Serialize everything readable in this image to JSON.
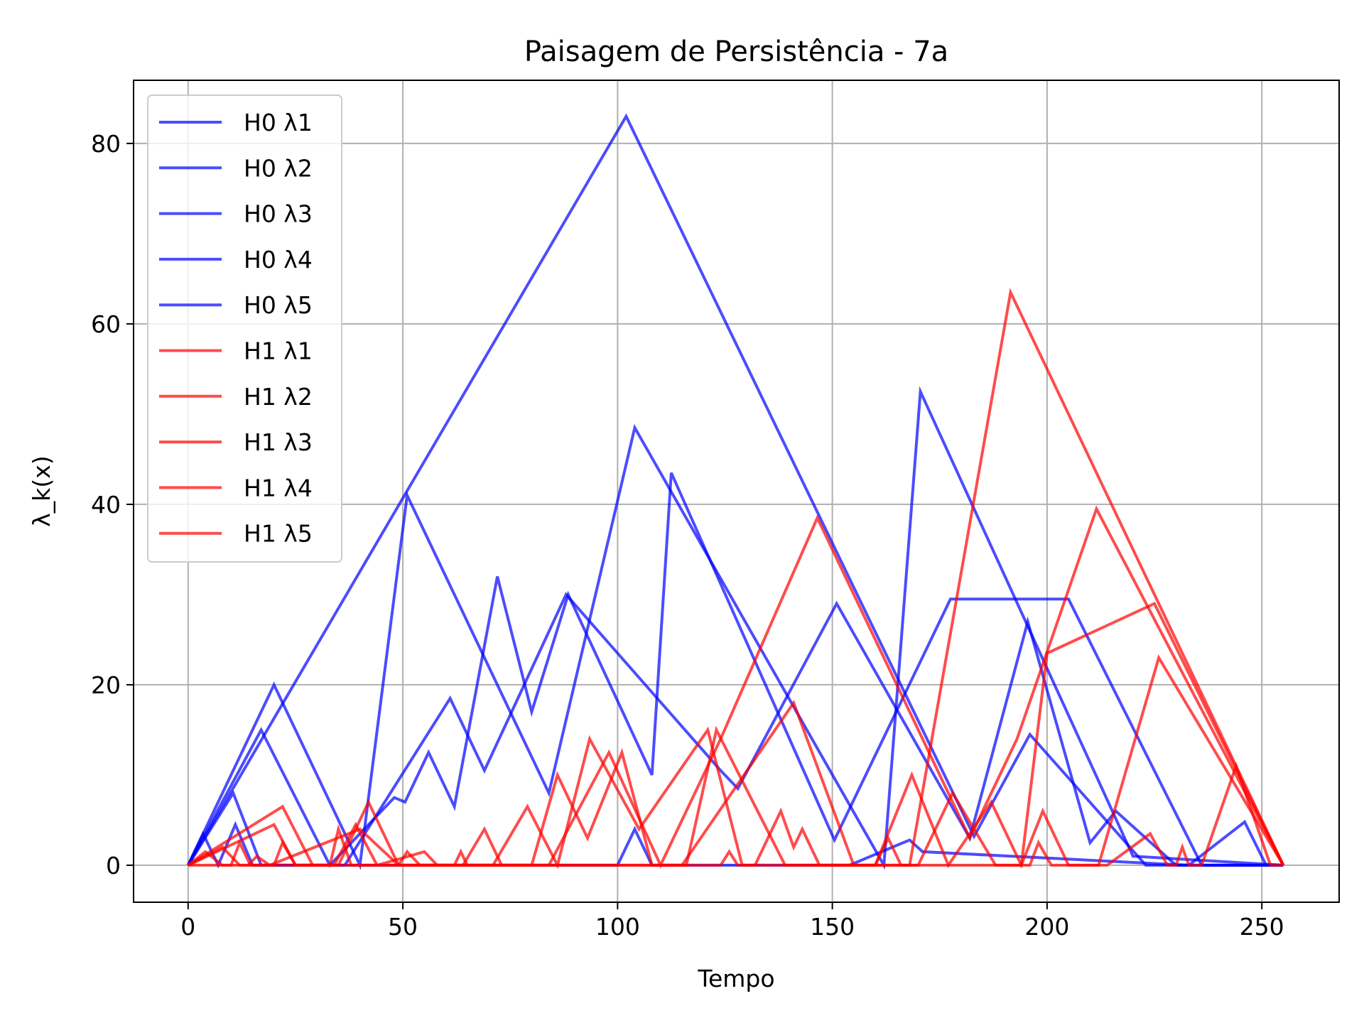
{
  "chart_data": {
    "type": "line",
    "title": "Paisagem de Persistência - 7a",
    "xlabel": "Tempo",
    "ylabel": "λ_k(x)",
    "xlim": [
      -12.7,
      268
    ],
    "ylim": [
      -4.1,
      87.0
    ],
    "xticks": [
      0,
      50,
      100,
      150,
      200,
      250
    ],
    "yticks": [
      0,
      20,
      40,
      60,
      80
    ],
    "grid": true,
    "legend_position": "upper-left",
    "colors": {
      "H0": "#0000ff",
      "H1": "#ff0000"
    },
    "line_alpha": 0.7,
    "series": [
      {
        "name": "H0 λ1",
        "group": "H0",
        "points": [
          [
            0,
            0
          ],
          [
            102,
            83
          ],
          [
            183,
            3.2
          ],
          [
            196,
            14.5
          ],
          [
            223,
            0
          ],
          [
            255,
            0
          ]
        ]
      },
      {
        "name": "H0 λ2",
        "group": "H0",
        "points": [
          [
            0,
            0
          ],
          [
            20,
            20
          ],
          [
            40,
            0
          ],
          [
            51,
            41
          ],
          [
            84,
            8
          ],
          [
            104,
            48.5
          ],
          [
            162,
            0
          ],
          [
            170.5,
            52.5
          ],
          [
            220,
            1
          ],
          [
            255,
            0
          ]
        ]
      },
      {
        "name": "H0 λ3",
        "group": "H0",
        "points": [
          [
            0,
            0
          ],
          [
            17,
            15
          ],
          [
            33,
            0
          ],
          [
            48,
            7.5
          ],
          [
            50.5,
            7
          ],
          [
            56,
            12.5
          ],
          [
            62,
            6.5
          ],
          [
            72,
            32
          ],
          [
            80,
            17
          ],
          [
            88.5,
            30
          ],
          [
            108,
            10
          ],
          [
            112.5,
            43.5
          ],
          [
            150.5,
            2.8
          ],
          [
            177.5,
            29.5
          ],
          [
            205,
            29.5
          ],
          [
            236,
            0
          ],
          [
            255,
            0
          ]
        ]
      },
      {
        "name": "H0 λ4",
        "group": "H0",
        "points": [
          [
            0,
            0
          ],
          [
            10.5,
            8
          ],
          [
            17,
            0
          ],
          [
            36.5,
            0
          ],
          [
            61,
            18.5
          ],
          [
            69,
            10.5
          ],
          [
            88,
            30
          ],
          [
            124,
            10.5
          ],
          [
            128,
            8.5
          ],
          [
            151,
            29
          ],
          [
            182,
            3
          ],
          [
            195.5,
            27
          ],
          [
            210,
            2.5
          ],
          [
            216,
            6
          ],
          [
            230,
            0
          ],
          [
            255,
            0
          ]
        ]
      },
      {
        "name": "H0 λ5",
        "group": "H0",
        "points": [
          [
            0,
            0
          ],
          [
            3.5,
            3.5
          ],
          [
            7,
            0
          ],
          [
            11,
            4.5
          ],
          [
            15,
            0
          ],
          [
            100,
            0
          ],
          [
            104,
            4
          ],
          [
            108,
            0
          ],
          [
            154,
            0
          ],
          [
            168,
            2.8
          ],
          [
            171,
            1.5
          ],
          [
            233,
            0
          ],
          [
            246,
            4.8
          ],
          [
            251,
            0
          ],
          [
            255,
            0
          ]
        ]
      },
      {
        "name": "H1 λ1",
        "group": "H1",
        "points": [
          [
            0,
            0
          ],
          [
            35,
            0
          ],
          [
            42,
            7
          ],
          [
            49,
            0
          ],
          [
            116,
            0
          ],
          [
            123,
            15
          ],
          [
            139,
            0
          ],
          [
            168,
            0
          ],
          [
            191.5,
            63.5
          ],
          [
            255,
            0
          ]
        ]
      },
      {
        "name": "H1 λ2",
        "group": "H1",
        "points": [
          [
            0,
            0
          ],
          [
            20,
            4.5
          ],
          [
            25,
            0
          ],
          [
            49,
            0
          ],
          [
            51,
            1.5
          ],
          [
            54,
            0
          ],
          [
            84,
            0
          ],
          [
            98,
            12.5
          ],
          [
            110,
            0
          ],
          [
            124,
            14
          ],
          [
            146.5,
            38.5
          ],
          [
            182,
            3
          ],
          [
            193,
            14
          ],
          [
            211.5,
            39.5
          ],
          [
            255,
            0
          ]
        ]
      },
      {
        "name": "H1 λ3",
        "group": "H1",
        "points": [
          [
            0,
            0
          ],
          [
            22,
            6.5
          ],
          [
            29,
            0
          ],
          [
            33,
            0
          ],
          [
            35,
            4
          ],
          [
            38,
            0
          ],
          [
            71,
            0
          ],
          [
            79,
            6.5
          ],
          [
            86,
            0
          ],
          [
            93.5,
            14
          ],
          [
            105,
            4
          ],
          [
            121,
            15
          ],
          [
            129,
            0
          ],
          [
            148,
            0
          ],
          [
            170,
            0
          ],
          [
            178,
            8
          ],
          [
            188,
            0
          ],
          [
            194,
            0
          ],
          [
            200,
            23.5
          ],
          [
            225,
            29
          ],
          [
            255,
            0
          ]
        ]
      },
      {
        "name": "H1 λ4",
        "group": "H1",
        "points": [
          [
            0,
            0
          ],
          [
            8,
            2
          ],
          [
            12,
            0
          ],
          [
            14,
            0
          ],
          [
            16,
            1
          ],
          [
            19,
            0
          ],
          [
            40,
            4
          ],
          [
            49,
            0
          ],
          [
            64,
            0
          ],
          [
            69,
            4
          ],
          [
            73,
            0
          ],
          [
            80,
            0
          ],
          [
            86,
            10
          ],
          [
            93,
            3
          ],
          [
            101,
            12.5
          ],
          [
            108,
            0
          ],
          [
            115,
            0
          ],
          [
            141,
            18
          ],
          [
            155,
            0
          ],
          [
            160,
            0
          ],
          [
            168.5,
            10
          ],
          [
            177,
            0
          ],
          [
            187,
            7
          ],
          [
            194,
            0
          ],
          [
            199,
            6
          ],
          [
            205,
            0
          ],
          [
            212,
            0
          ],
          [
            226,
            23
          ],
          [
            255,
            0
          ]
        ]
      },
      {
        "name": "H1 λ5",
        "group": "H1",
        "points": [
          [
            0,
            0
          ],
          [
            4,
            1.5
          ],
          [
            8,
            0
          ],
          [
            10,
            0
          ],
          [
            12,
            2.5
          ],
          [
            14.5,
            0
          ],
          [
            20,
            0
          ],
          [
            22,
            2.5
          ],
          [
            25,
            0
          ],
          [
            34,
            0
          ],
          [
            39,
            4.5
          ],
          [
            44,
            0
          ],
          [
            55,
            1.5
          ],
          [
            58,
            0
          ],
          [
            62,
            0
          ],
          [
            63.5,
            1.5
          ],
          [
            65,
            0
          ],
          [
            124,
            0
          ],
          [
            126,
            1.5
          ],
          [
            128,
            0
          ],
          [
            132,
            0
          ],
          [
            138,
            6
          ],
          [
            141,
            2
          ],
          [
            143,
            4
          ],
          [
            147,
            0
          ],
          [
            160,
            0
          ],
          [
            163,
            3
          ],
          [
            166,
            0
          ],
          [
            196,
            0
          ],
          [
            198,
            2.5
          ],
          [
            201,
            0
          ],
          [
            214,
            0
          ],
          [
            224,
            3.5
          ],
          [
            228,
            0
          ],
          [
            230,
            0
          ],
          [
            231.5,
            2
          ],
          [
            233,
            0
          ],
          [
            236,
            0
          ],
          [
            244,
            11
          ],
          [
            252,
            0
          ],
          [
            255,
            0
          ]
        ]
      }
    ]
  }
}
